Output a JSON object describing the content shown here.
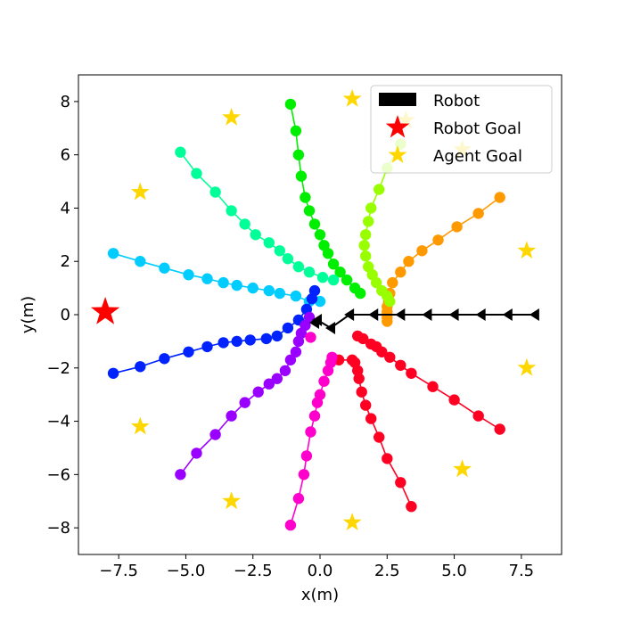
{
  "chart_data": {
    "type": "scatter",
    "xlabel": "x(m)",
    "ylabel": "y(m)",
    "xlim": [
      -9,
      9
    ],
    "ylim": [
      -9,
      9
    ],
    "xticks": [
      -7.5,
      -5.0,
      -2.5,
      0.0,
      2.5,
      5.0,
      7.5
    ],
    "xtick_labels": [
      "−7.5",
      "−5.0",
      "−2.5",
      "0.0",
      "2.5",
      "5.0",
      "7.5"
    ],
    "yticks": [
      -8,
      -6,
      -4,
      -2,
      0,
      2,
      4,
      6,
      8
    ],
    "ytick_labels": [
      "−8",
      "−6",
      "−4",
      "−2",
      "0",
      "2",
      "4",
      "6",
      "8"
    ],
    "grid": false,
    "legend": {
      "placement": "top-right",
      "entries": [
        {
          "label": "Robot",
          "marker": "rectangle",
          "color": "#000000"
        },
        {
          "label": "Robot Goal",
          "marker": "star",
          "color": "#ff0000"
        },
        {
          "label": "Agent Goal",
          "marker": "star",
          "color": "#ffd700"
        }
      ]
    },
    "robot": {
      "color": "#000000",
      "marker": "triangle-left",
      "points": [
        [
          8.0,
          0.0
        ],
        [
          7.0,
          0.0
        ],
        [
          6.0,
          0.0
        ],
        [
          5.0,
          0.0
        ],
        [
          4.0,
          0.0
        ],
        [
          3.0,
          0.0
        ],
        [
          2.0,
          0.0
        ],
        [
          1.1,
          0.0
        ],
        [
          0.4,
          -0.5
        ],
        [
          -0.1,
          -0.2
        ],
        [
          -0.2,
          -0.3
        ]
      ]
    },
    "robot_goal": {
      "color": "#ff0000",
      "point": [
        -8.0,
        0.1
      ]
    },
    "agent_goals": {
      "color": "#ffd700",
      "points": [
        [
          1.2,
          8.1
        ],
        [
          -3.3,
          7.4
        ],
        [
          3.2,
          7.3
        ],
        [
          5.3,
          6.2
        ],
        [
          -6.7,
          4.6
        ],
        [
          7.7,
          2.4
        ],
        [
          7.7,
          -2.0
        ],
        [
          -6.7,
          -4.2
        ],
        [
          5.3,
          -5.8
        ],
        [
          -3.3,
          -7.0
        ],
        [
          1.2,
          -7.8
        ]
      ]
    },
    "series": [
      {
        "color": "#ff0022",
        "points": [
          [
            3.4,
            -7.2
          ],
          [
            3.0,
            -6.3
          ],
          [
            2.5,
            -5.4
          ],
          [
            2.2,
            -4.6
          ],
          [
            1.9,
            -3.9
          ],
          [
            1.7,
            -3.4
          ],
          [
            1.55,
            -2.9
          ],
          [
            1.45,
            -2.4
          ],
          [
            1.4,
            -2.1
          ],
          [
            1.3,
            -1.8
          ],
          [
            1.2,
            -1.7
          ],
          [
            0.7,
            -1.7
          ]
        ]
      },
      {
        "color": "#ff0022",
        "points": [
          [
            6.7,
            -4.3
          ],
          [
            5.9,
            -3.8
          ],
          [
            5.0,
            -3.2
          ],
          [
            4.2,
            -2.7
          ],
          [
            3.4,
            -2.2
          ],
          [
            3.0,
            -1.9
          ],
          [
            2.6,
            -1.6
          ],
          [
            2.3,
            -1.4
          ],
          [
            2.1,
            -1.2
          ],
          [
            1.9,
            -1.1
          ],
          [
            1.6,
            -0.9
          ],
          [
            1.4,
            -0.8
          ]
        ]
      },
      {
        "color": "#ff9900",
        "points": [
          [
            6.7,
            4.4
          ],
          [
            5.9,
            3.8
          ],
          [
            5.1,
            3.3
          ],
          [
            4.4,
            2.8
          ],
          [
            3.8,
            2.4
          ],
          [
            3.3,
            2.0
          ],
          [
            3.0,
            1.6
          ],
          [
            2.7,
            1.2
          ],
          [
            2.6,
            0.8
          ],
          [
            2.55,
            0.5
          ],
          [
            2.5,
            0.3
          ],
          [
            2.5,
            0.1
          ],
          [
            2.5,
            -0.1
          ],
          [
            2.5,
            -0.25
          ]
        ]
      },
      {
        "color": "#99ff00",
        "points": [
          [
            3.0,
            6.4
          ],
          [
            2.5,
            5.5
          ],
          [
            2.2,
            4.7
          ],
          [
            1.9,
            4.0
          ],
          [
            1.8,
            3.5
          ],
          [
            1.7,
            3.0
          ],
          [
            1.65,
            2.6
          ],
          [
            1.7,
            2.2
          ],
          [
            1.8,
            1.8
          ],
          [
            1.95,
            1.5
          ],
          [
            2.1,
            1.2
          ],
          [
            2.3,
            0.9
          ],
          [
            2.5,
            0.7
          ],
          [
            2.6,
            0.5
          ]
        ]
      },
      {
        "color": "#00ee00",
        "points": [
          [
            -1.1,
            7.9
          ],
          [
            -0.9,
            6.9
          ],
          [
            -0.8,
            6.0
          ],
          [
            -0.7,
            5.2
          ],
          [
            -0.55,
            4.4
          ],
          [
            -0.4,
            3.9
          ],
          [
            -0.2,
            3.4
          ],
          [
            0.0,
            3.0
          ],
          [
            0.15,
            2.6
          ],
          [
            0.3,
            2.3
          ],
          [
            0.5,
            1.9
          ],
          [
            0.75,
            1.6
          ],
          [
            1.0,
            1.3
          ],
          [
            1.3,
            1.0
          ],
          [
            1.5,
            0.8
          ]
        ]
      },
      {
        "color": "#00ff99",
        "points": [
          [
            -5.2,
            6.1
          ],
          [
            -4.6,
            5.3
          ],
          [
            -3.9,
            4.6
          ],
          [
            -3.3,
            3.9
          ],
          [
            -2.8,
            3.4
          ],
          [
            -2.4,
            3.0
          ],
          [
            -1.9,
            2.7
          ],
          [
            -1.5,
            2.4
          ],
          [
            -1.2,
            2.1
          ],
          [
            -0.8,
            1.8
          ],
          [
            -0.4,
            1.6
          ],
          [
            0.1,
            1.4
          ],
          [
            0.5,
            1.3
          ]
        ]
      },
      {
        "color": "#00ccff",
        "points": [
          [
            -7.7,
            2.3
          ],
          [
            -6.7,
            2.0
          ],
          [
            -5.8,
            1.75
          ],
          [
            -4.9,
            1.5
          ],
          [
            -4.2,
            1.35
          ],
          [
            -3.6,
            1.2
          ],
          [
            -3.1,
            1.1
          ],
          [
            -2.5,
            1.0
          ],
          [
            -1.9,
            0.9
          ],
          [
            -1.5,
            0.8
          ],
          [
            -0.9,
            0.7
          ],
          [
            -0.4,
            0.5
          ],
          [
            0.0,
            0.5
          ]
        ]
      },
      {
        "color": "#0022ff",
        "points": [
          [
            -7.7,
            -2.2
          ],
          [
            -6.7,
            -1.95
          ],
          [
            -5.8,
            -1.65
          ],
          [
            -4.9,
            -1.4
          ],
          [
            -4.2,
            -1.2
          ],
          [
            -3.6,
            -1.05
          ],
          [
            -3.1,
            -1.0
          ],
          [
            -2.6,
            -0.95
          ],
          [
            -2.0,
            -0.9
          ],
          [
            -1.6,
            -0.8
          ],
          [
            -1.2,
            -0.5
          ],
          [
            -0.8,
            -0.2
          ],
          [
            -0.5,
            0.2
          ],
          [
            -0.3,
            0.6
          ],
          [
            -0.2,
            0.9
          ]
        ]
      },
      {
        "color": "#9900ff",
        "points": [
          [
            -5.2,
            -6.0
          ],
          [
            -4.6,
            -5.2
          ],
          [
            -3.9,
            -4.5
          ],
          [
            -3.3,
            -3.8
          ],
          [
            -2.8,
            -3.3
          ],
          [
            -2.3,
            -2.9
          ],
          [
            -1.9,
            -2.6
          ],
          [
            -1.6,
            -2.4
          ],
          [
            -1.3,
            -2.1
          ],
          [
            -1.1,
            -1.7
          ],
          [
            -0.9,
            -1.4
          ],
          [
            -0.8,
            -1.0
          ],
          [
            -0.7,
            -0.7
          ],
          [
            -0.55,
            -0.4
          ],
          [
            -0.4,
            -0.1
          ]
        ]
      },
      {
        "color": "#ff00cc",
        "points": [
          [
            -1.1,
            -7.9
          ],
          [
            -0.8,
            -6.9
          ],
          [
            -0.6,
            -6.0
          ],
          [
            -0.5,
            -5.3
          ],
          [
            -0.35,
            -4.4
          ],
          [
            -0.2,
            -3.8
          ],
          [
            -0.1,
            -3.3
          ],
          [
            0.0,
            -3.0
          ],
          [
            0.15,
            -2.5
          ],
          [
            0.3,
            -2.1
          ],
          [
            0.4,
            -1.8
          ],
          [
            0.45,
            -1.6
          ]
        ]
      },
      {
        "color": "#ff00cc",
        "points": [
          [
            -0.35,
            -0.85
          ]
        ]
      }
    ]
  }
}
